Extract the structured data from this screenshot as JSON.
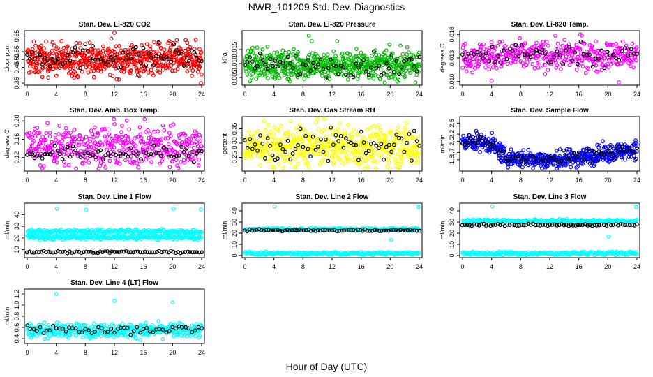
{
  "title": "NWR_101209  Std. Dev. Diagnostics",
  "x_axis_title": "Hour of Day (UTC)",
  "chart_data": [
    {
      "type": "scatter",
      "title": "Stan. Dev. Li-820 CO2",
      "ylabel": "Licor ppm",
      "color": "#ff0000",
      "xlim": [
        0,
        24
      ],
      "ylim": [
        0.35,
        0.67
      ],
      "x_ticks": [
        0,
        4,
        8,
        12,
        16,
        20,
        24
      ],
      "y_ticks": [
        0.35,
        0.45,
        0.55,
        0.65
      ],
      "y_tick_labels": [
        "0.35",
        "0.45",
        "0.50",
        "0.55",
        "0.65"
      ],
      "y_tick_label_values": [
        0.35,
        0.45,
        0.5,
        0.55,
        0.65
      ],
      "series": [
        {
          "role": "colored",
          "model": {
            "base": 0.5,
            "spread": 0.05,
            "n": 600,
            "outliers": [
              [
                12,
                0.67
              ],
              [
                23.9,
                0.35
              ]
            ]
          }
        },
        {
          "role": "black",
          "model": {
            "base": 0.52,
            "spread": 0.04,
            "n": 70
          }
        }
      ]
    },
    {
      "type": "scatter",
      "title": "Stan. Dev. Li-820 Pressure",
      "ylabel": "kPa",
      "color": "#00bb00",
      "xlim": [
        0,
        24
      ],
      "ylim": [
        0.003,
        0.021
      ],
      "x_ticks": [
        0,
        4,
        8,
        12,
        16,
        20,
        24
      ],
      "y_tick_labels": [
        "0.005",
        "0.010",
        "0.015"
      ],
      "y_tick_label_values": [
        0.005,
        0.01,
        0.015
      ],
      "series": [
        {
          "role": "colored",
          "model": {
            "base": 0.0095,
            "spread": 0.0025,
            "n": 600,
            "outliers": [
              [
                8.8,
                0.02
              ],
              [
                9.2,
                0.018
              ],
              [
                12.7,
                0.018
              ],
              [
                3.1,
                0.016
              ]
            ]
          }
        },
        {
          "role": "black",
          "model": {
            "base": 0.0095,
            "spread": 0.002,
            "n": 70
          }
        }
      ]
    },
    {
      "type": "scatter",
      "title": "Stan. Dev. Li-820 Temp.",
      "ylabel": "degrees C",
      "color": "#ff00ff",
      "xlim": [
        0,
        24
      ],
      "ylim": [
        0.0098,
        0.0162
      ],
      "x_ticks": [
        0,
        4,
        8,
        12,
        16,
        20,
        24
      ],
      "y_tick_labels": [
        "0.010",
        "0.013",
        "0.016"
      ],
      "y_tick_label_values": [
        0.01,
        0.013,
        0.016
      ],
      "series": [
        {
          "role": "colored",
          "model": {
            "base": 0.0133,
            "spread": 0.0009,
            "n": 450,
            "outliers": [
              [
                4.0,
                0.0101
              ],
              [
                21.5,
                0.0099
              ],
              [
                16.2,
                0.016
              ]
            ]
          }
        },
        {
          "role": "black",
          "model": {
            "base": 0.0135,
            "spread": 0.0007,
            "n": 60
          }
        }
      ]
    },
    {
      "type": "scatter",
      "title": "Stan. Dev. Amb. Box Temp.",
      "ylabel": "degrees C",
      "color": "#ff00ff",
      "xlim": [
        0,
        24
      ],
      "ylim": [
        0.095,
        0.205
      ],
      "x_ticks": [
        0,
        4,
        8,
        12,
        16,
        20,
        24
      ],
      "y_tick_labels": [
        "0.12",
        "0.16",
        "0.20"
      ],
      "y_tick_label_values": [
        0.12,
        0.16,
        0.2
      ],
      "series": [
        {
          "role": "colored",
          "model": {
            "base": 0.145,
            "spread": 0.022,
            "n": 450
          }
        },
        {
          "role": "black",
          "model": {
            "base": 0.128,
            "spread": 0.008,
            "n": 70
          }
        }
      ]
    },
    {
      "type": "scatter",
      "title": "Stan. Dev. Gas Stream RH",
      "ylabel": "percent",
      "color": "#ffff00",
      "xlim": [
        0,
        24
      ],
      "ylim": [
        0.21,
        0.385
      ],
      "x_ticks": [
        0,
        4,
        8,
        12,
        16,
        20,
        24
      ],
      "y_tick_labels": [
        "0.25",
        "0.30",
        "0.35"
      ],
      "y_tick_label_values": [
        0.25,
        0.3,
        0.35
      ],
      "series": [
        {
          "role": "colored",
          "model": {
            "base": 0.29,
            "spread": 0.035,
            "n": 550
          }
        },
        {
          "role": "black",
          "model": {
            "base": 0.29,
            "spread": 0.03,
            "n": 70
          }
        }
      ]
    },
    {
      "type": "scatter",
      "title": "Stan. Dev. Sample Flow",
      "ylabel": "ml/min",
      "color": "#0000ff",
      "xlim": [
        0,
        24
      ],
      "ylim": [
        1.25,
        2.62
      ],
      "x_ticks": [
        0,
        4,
        8,
        12,
        16,
        20,
        24
      ],
      "y_tick_labels": [
        "1.5",
        "1.7",
        "2.0",
        "2.2",
        "2.5"
      ],
      "y_tick_label_values": [
        1.5,
        1.7,
        2.0,
        2.2,
        2.5
      ],
      "series": [
        {
          "role": "colored",
          "model": {
            "profile": "sample_flow",
            "spread": 0.12,
            "n": 550
          }
        },
        {
          "role": "black",
          "model": {
            "profile": "sample_flow",
            "spread": 0.08,
            "n": 70
          }
        }
      ]
    },
    {
      "type": "scatter",
      "title": "Stan. Dev. Line 1 Flow",
      "ylabel": "ml/min",
      "color": "#00ffff",
      "xlim": [
        0,
        24
      ],
      "ylim": [
        5,
        48
      ],
      "x_ticks": [
        0,
        4,
        8,
        12,
        16,
        20,
        24
      ],
      "y_tick_labels": [
        "10",
        "20",
        "30",
        "40"
      ],
      "y_tick_label_values": [
        10,
        20,
        30,
        40
      ],
      "series": [
        {
          "role": "colored",
          "model": {
            "bands": [
              20.5,
              25.5
            ],
            "spread": 1.0,
            "n": 500,
            "outliers": [
              [
                4.1,
                45
              ],
              [
                8.1,
                44
              ],
              [
                20.1,
                45
              ],
              [
                23.9,
                44.5
              ]
            ]
          }
        },
        {
          "role": "black",
          "model": {
            "base": 8.0,
            "spread": 0.4,
            "n": 75
          }
        }
      ]
    },
    {
      "type": "scatter",
      "title": "Stan. Dev. Line 2 Flow",
      "ylabel": "ml/min",
      "color": "#00ffff",
      "xlim": [
        0,
        24
      ],
      "ylim": [
        0,
        45
      ],
      "x_ticks": [
        0,
        4,
        8,
        12,
        16,
        20,
        24
      ],
      "y_tick_labels": [
        "0",
        "10",
        "20",
        "30",
        "40"
      ],
      "y_tick_label_values": [
        0,
        10,
        20,
        30,
        40
      ],
      "series": [
        {
          "role": "colored",
          "model": {
            "bands": [
              2.0,
              23.5
            ],
            "spread": 0.6,
            "n": 500,
            "outliers": [
              [
                4.1,
                44
              ],
              [
                20.1,
                14
              ],
              [
                23.9,
                43.5
              ]
            ]
          }
        },
        {
          "role": "black",
          "model": {
            "base": 22.5,
            "spread": 0.4,
            "n": 75
          }
        }
      ]
    },
    {
      "type": "scatter",
      "title": "Stan. Dev. Line 3 Flow",
      "ylabel": "ml/min",
      "color": "#00ffff",
      "xlim": [
        0,
        24
      ],
      "ylim": [
        0,
        45
      ],
      "x_ticks": [
        0,
        4,
        8,
        12,
        16,
        20,
        24
      ],
      "y_tick_labels": [
        "0",
        "10",
        "20",
        "30",
        "40"
      ],
      "y_tick_label_values": [
        0,
        10,
        20,
        30,
        40
      ],
      "series": [
        {
          "role": "colored",
          "model": {
            "bands": [
              2.0,
              31.0
            ],
            "spread": 0.7,
            "n": 500,
            "outliers": [
              [
                4.1,
                44
              ],
              [
                20.1,
                17
              ],
              [
                23.9,
                43.5
              ]
            ]
          }
        },
        {
          "role": "black",
          "model": {
            "base": 27.5,
            "spread": 0.5,
            "n": 75
          }
        }
      ]
    },
    {
      "type": "scatter",
      "title": "Stan. Dev. Line 4 (LT) Flow",
      "ylabel": "ml/min",
      "color": "#00ffff",
      "xlim": [
        0,
        24
      ],
      "ylim": [
        0.35,
        1.25
      ],
      "x_ticks": [
        0,
        4,
        8,
        12,
        16,
        20,
        24
      ],
      "y_tick_labels": [
        "0.4",
        "0.6",
        "0.8",
        "1.0",
        "1.2"
      ],
      "y_tick_label_values": [
        0.4,
        0.6,
        0.8,
        1.0,
        1.2
      ],
      "series": [
        {
          "role": "colored",
          "model": {
            "base": 0.55,
            "spread": 0.06,
            "n": 450,
            "outliers": [
              [
                4.0,
                1.2
              ],
              [
                12.0,
                1.08
              ],
              [
                20.0,
                1.05
              ]
            ]
          }
        },
        {
          "role": "black",
          "model": {
            "base": 0.55,
            "spread": 0.06,
            "n": 55
          }
        }
      ]
    }
  ]
}
